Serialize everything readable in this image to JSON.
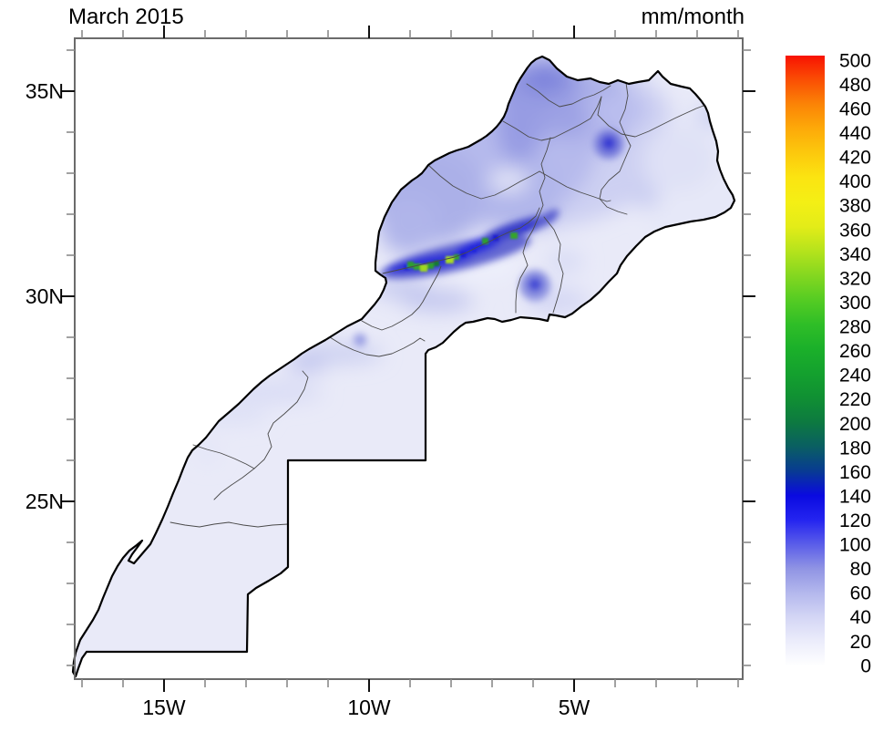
{
  "titles": {
    "left": "March 2015",
    "right": "mm/month"
  },
  "axes": {
    "x_major_labels": [
      "15W",
      "10W",
      "5W"
    ],
    "x_major_lons": [
      -15,
      -10,
      -5
    ],
    "y_major_labels": [
      "35N",
      "30N",
      "25N"
    ],
    "y_major_lats": [
      35,
      30,
      25
    ],
    "lon_minor_range": [
      -17,
      -1
    ],
    "lat_minor_range": [
      21,
      36
    ]
  },
  "colorbar": {
    "min": 0,
    "max": 500,
    "step": 20,
    "stops": [
      {
        "value": 0,
        "color": "#ffffff"
      },
      {
        "value": 20,
        "color": "#ecedfb"
      },
      {
        "value": 40,
        "color": "#d4d6f5"
      },
      {
        "value": 60,
        "color": "#b4b8ed"
      },
      {
        "value": 80,
        "color": "#9094e4"
      },
      {
        "value": 100,
        "color": "#5a5de9"
      },
      {
        "value": 120,
        "color": "#2424f0"
      },
      {
        "value": 140,
        "color": "#0a0ae0"
      },
      {
        "value": 160,
        "color": "#083b92"
      },
      {
        "value": 180,
        "color": "#0a5f62"
      },
      {
        "value": 200,
        "color": "#0d7a40"
      },
      {
        "value": 220,
        "color": "#109033"
      },
      {
        "value": 240,
        "color": "#14a12e"
      },
      {
        "value": 260,
        "color": "#1bb02a"
      },
      {
        "value": 280,
        "color": "#2fbe27"
      },
      {
        "value": 300,
        "color": "#55cc23"
      },
      {
        "value": 320,
        "color": "#84d720"
      },
      {
        "value": 340,
        "color": "#b5e31c"
      },
      {
        "value": 360,
        "color": "#e3ec18"
      },
      {
        "value": 380,
        "color": "#f4ef15"
      },
      {
        "value": 400,
        "color": "#fbe411"
      },
      {
        "value": 420,
        "color": "#fcc90d"
      },
      {
        "value": 440,
        "color": "#fdaa09"
      },
      {
        "value": 460,
        "color": "#fb8406"
      },
      {
        "value": 480,
        "color": "#fa4f04"
      },
      {
        "value": 500,
        "color": "#f81202"
      }
    ]
  },
  "map": {
    "region": "Morocco and Western Sahara",
    "land_fill": "#e9eaf8",
    "coast_color": "#000000",
    "admin_color": "#4a4a4a"
  },
  "chart_data": {
    "type": "heatmap",
    "title": "March 2015",
    "units": "mm/month",
    "region": "Monthly precipitation over Morocco and Western Sahara",
    "lon_range": [
      "17.2W",
      "0.9W"
    ],
    "lat_range": [
      "20.7N",
      "36.3N"
    ],
    "x_ticks": [
      "15W",
      "10W",
      "5W"
    ],
    "y_ticks": [
      "35N",
      "30N",
      "25N"
    ],
    "grid": false,
    "legend_position": "right",
    "colorbar_levels": [
      0,
      20,
      40,
      60,
      80,
      100,
      120,
      140,
      160,
      180,
      200,
      220,
      240,
      260,
      280,
      300,
      320,
      340,
      360,
      380,
      400,
      420,
      440,
      460,
      480,
      500
    ],
    "features": [
      {
        "area": "High Atlas ridge (~31N, 8.7W-7W)",
        "precip_mm": "140-380, dark blue band with green/yellow-green local maxima of 260-380"
      },
      {
        "area": "Rif mountains and Tangier peninsula (35-36N)",
        "precip_mm": "60-140"
      },
      {
        "area": "Local maximum near 3.5W 33.8N (Oriental)",
        "precip_mm": "about 120-140"
      },
      {
        "area": "Local maximum near 6W 30.2N",
        "precip_mm": "about 100-120"
      },
      {
        "area": "Atlantic plains Casablanca-Essaouira",
        "precip_mm": "40-80"
      },
      {
        "area": "Eastern plateaus and pre-Sahara southeast",
        "precip_mm": "5-30"
      },
      {
        "area": "Northern Western Sahara coastal strip (27-28.5N)",
        "precip_mm": "10-40"
      },
      {
        "area": "Western Sahara south of 26N",
        "precip_mm": "0-10"
      }
    ]
  }
}
